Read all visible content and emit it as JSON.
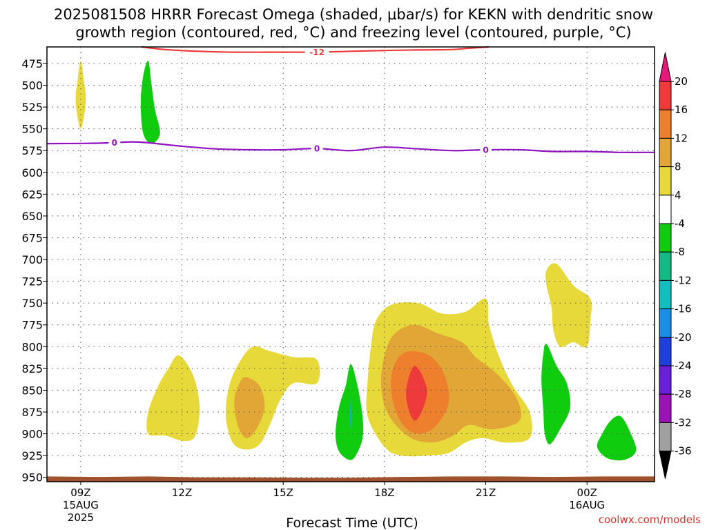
{
  "title_line1": "2025081508 HRRR Forecast Omega (shaded, μbar/s) for KEKN with dendritic snow",
  "title_line2": "growth region (contoured, red, °C) and freezing level (contoured, purple, °C)",
  "credit": "coolwx.com/models",
  "chart_data": {
    "type": "contour",
    "xlabel": "Forecast Time (UTC)",
    "ylabel": "",
    "x_range_hours": [
      8,
      26
    ],
    "y_range_hpa": [
      456,
      955
    ],
    "y_axis": "pressure (hPa), inverted",
    "grid": true,
    "y_ticks": [
      475,
      500,
      525,
      550,
      575,
      600,
      625,
      650,
      675,
      700,
      725,
      750,
      775,
      800,
      825,
      850,
      875,
      900,
      925,
      950
    ],
    "x_ticks": [
      {
        "hour": 9,
        "label": "09Z",
        "sub1": "15AUG",
        "sub2": "2025"
      },
      {
        "hour": 12,
        "label": "12Z",
        "sub1": "",
        "sub2": ""
      },
      {
        "hour": 15,
        "label": "15Z",
        "sub1": "",
        "sub2": ""
      },
      {
        "hour": 18,
        "label": "18Z",
        "sub1": "",
        "sub2": ""
      },
      {
        "hour": 21,
        "label": "21Z",
        "sub1": "",
        "sub2": ""
      },
      {
        "hour": 24,
        "label": "00Z",
        "sub1": "16AUG",
        "sub2": ""
      }
    ],
    "colorbar": {
      "labels": [
        "20",
        "16",
        "12",
        "8",
        "4",
        "-4",
        "-8",
        "-12",
        "-16",
        "-20",
        "-24",
        "-28",
        "-32",
        "-36"
      ],
      "colors": [
        "#ee3a3a",
        "#ee7f2d",
        "#e2a637",
        "#e8d93a",
        "#ffffff",
        "#0fcc0f",
        "#12bb84",
        "#11bfbf",
        "#1a8fe8",
        "#1f3fd9",
        "#6a1fd8",
        "#9a12b8",
        "#a0a0a0"
      ],
      "top_arrow_color": "#e6197a",
      "bottom_arrow_color": "#000000"
    },
    "freezing_level": {
      "label": "0",
      "color": "#9012c0",
      "points": [
        [
          8,
          567
        ],
        [
          9.5,
          566.5
        ],
        [
          10.5,
          565
        ],
        [
          11,
          566
        ],
        [
          12,
          570
        ],
        [
          13,
          573
        ],
        [
          14,
          574
        ],
        [
          15,
          574
        ],
        [
          16,
          572.5
        ],
        [
          17,
          575
        ],
        [
          18,
          571
        ],
        [
          19,
          573
        ],
        [
          20,
          575
        ],
        [
          21,
          574
        ],
        [
          22,
          574
        ],
        [
          23,
          576
        ],
        [
          24,
          576
        ],
        [
          25,
          577
        ],
        [
          26,
          577
        ]
      ],
      "label_hours": [
        10,
        16,
        21
      ]
    },
    "dendritic_isotherm": {
      "label": "-12",
      "color": "#ee3a3a",
      "points": [
        [
          10.8,
          456
        ],
        [
          11.5,
          459
        ],
        [
          12.5,
          461
        ],
        [
          13.5,
          462
        ],
        [
          15,
          462
        ],
        [
          16,
          462
        ],
        [
          17,
          461
        ],
        [
          18,
          460
        ],
        [
          19,
          459.5
        ],
        [
          20,
          459
        ],
        [
          20.5,
          457.5
        ],
        [
          21.1,
          456
        ]
      ],
      "label_hours": [
        16
      ]
    },
    "shaded_regions": [
      {
        "value": "4",
        "color": "#e8d93a",
        "points": [
          [
            9.0,
            472
          ],
          [
            9.1,
            497
          ],
          [
            9.15,
            512
          ],
          [
            9.12,
            530
          ],
          [
            9.0,
            550
          ],
          [
            8.88,
            530
          ],
          [
            8.85,
            512
          ],
          [
            8.9,
            497
          ]
        ]
      },
      {
        "value": "-4",
        "color": "#0fcc0f",
        "points": [
          [
            11.0,
            472
          ],
          [
            11.1,
            500
          ],
          [
            11.2,
            528
          ],
          [
            11.35,
            555
          ],
          [
            11.1,
            567
          ],
          [
            10.85,
            555
          ],
          [
            10.78,
            520
          ],
          [
            10.85,
            490
          ]
        ]
      },
      {
        "value": "4",
        "color": "#e8d93a",
        "points": [
          [
            11.9,
            810
          ],
          [
            12.3,
            830
          ],
          [
            12.5,
            860
          ],
          [
            12.5,
            885
          ],
          [
            12.35,
            905
          ],
          [
            12.0,
            908
          ],
          [
            11.5,
            902
          ],
          [
            11.0,
            900
          ],
          [
            11.0,
            875
          ],
          [
            11.3,
            845
          ],
          [
            11.6,
            825
          ]
        ]
      },
      {
        "value": "4",
        "color": "#e8d93a",
        "points": [
          [
            14.1,
            800
          ],
          [
            14.6,
            805
          ],
          [
            15.3,
            812
          ],
          [
            16.0,
            815
          ],
          [
            16.0,
            842
          ],
          [
            15.3,
            842
          ],
          [
            14.9,
            862
          ],
          [
            14.6,
            890
          ],
          [
            14.3,
            912
          ],
          [
            13.9,
            918
          ],
          [
            13.5,
            910
          ],
          [
            13.3,
            880
          ],
          [
            13.4,
            845
          ],
          [
            13.7,
            818
          ]
        ]
      },
      {
        "value": "8",
        "color": "#e2a637",
        "points": [
          [
            13.9,
            835
          ],
          [
            14.3,
            845
          ],
          [
            14.45,
            870
          ],
          [
            14.2,
            895
          ],
          [
            13.9,
            905
          ],
          [
            13.65,
            890
          ],
          [
            13.55,
            862
          ],
          [
            13.7,
            842
          ]
        ]
      },
      {
        "value": "-4",
        "color": "#0fcc0f",
        "points": [
          [
            17.0,
            820
          ],
          [
            17.2,
            845
          ],
          [
            17.35,
            880
          ],
          [
            17.35,
            905
          ],
          [
            17.15,
            925
          ],
          [
            16.95,
            930
          ],
          [
            16.65,
            920
          ],
          [
            16.55,
            900
          ],
          [
            16.65,
            870
          ],
          [
            16.85,
            845
          ]
        ]
      },
      {
        "value": "-8",
        "color": "#12bb84",
        "points": [
          [
            17.0,
            860
          ],
          [
            17.05,
            880
          ],
          [
            17.0,
            895
          ],
          [
            16.95,
            880
          ]
        ]
      },
      {
        "value": "4",
        "color": "#e8d93a",
        "points": [
          [
            19.0,
            750
          ],
          [
            19.7,
            762
          ],
          [
            20.4,
            760
          ],
          [
            21.0,
            745
          ],
          [
            21.1,
            775
          ],
          [
            21.4,
            812
          ],
          [
            21.8,
            845
          ],
          [
            22.3,
            875
          ],
          [
            22.3,
            905
          ],
          [
            21.6,
            910
          ],
          [
            20.9,
            905
          ],
          [
            20.4,
            910
          ],
          [
            19.9,
            922
          ],
          [
            19.3,
            925
          ],
          [
            18.5,
            925
          ],
          [
            18.0,
            915
          ],
          [
            17.5,
            880
          ],
          [
            17.5,
            840
          ],
          [
            17.6,
            800
          ],
          [
            17.75,
            770
          ],
          [
            18.2,
            752
          ]
        ]
      },
      {
        "value": "8",
        "color": "#e2a637",
        "points": [
          [
            18.9,
            775
          ],
          [
            19.6,
            785
          ],
          [
            20.3,
            795
          ],
          [
            20.7,
            812
          ],
          [
            21.3,
            830
          ],
          [
            21.9,
            858
          ],
          [
            22.0,
            885
          ],
          [
            21.2,
            895
          ],
          [
            20.5,
            890
          ],
          [
            20.0,
            903
          ],
          [
            19.4,
            910
          ],
          [
            18.7,
            903
          ],
          [
            18.1,
            877
          ],
          [
            17.9,
            845
          ],
          [
            18.0,
            810
          ],
          [
            18.3,
            785
          ]
        ]
      },
      {
        "value": "12",
        "color": "#ee7f2d",
        "points": [
          [
            18.8,
            805
          ],
          [
            19.4,
            812
          ],
          [
            19.8,
            835
          ],
          [
            19.9,
            865
          ],
          [
            19.5,
            892
          ],
          [
            19.0,
            900
          ],
          [
            18.55,
            890
          ],
          [
            18.25,
            863
          ],
          [
            18.2,
            835
          ],
          [
            18.4,
            813
          ]
        ]
      },
      {
        "value": "16",
        "color": "#ee3a3a",
        "points": [
          [
            18.9,
            822
          ],
          [
            19.25,
            847
          ],
          [
            19.15,
            870
          ],
          [
            18.9,
            885
          ],
          [
            18.7,
            870
          ],
          [
            18.65,
            847
          ]
        ]
      },
      {
        "value": "4",
        "color": "#e8d93a",
        "points": [
          [
            23.1,
            705
          ],
          [
            23.6,
            730
          ],
          [
            24.1,
            745
          ],
          [
            24.1,
            770
          ],
          [
            24.0,
            800
          ],
          [
            23.6,
            795
          ],
          [
            23.2,
            800
          ],
          [
            23.0,
            780
          ],
          [
            22.95,
            755
          ],
          [
            22.8,
            730
          ],
          [
            22.8,
            712
          ]
        ]
      },
      {
        "value": "-4",
        "color": "#0fcc0f",
        "points": [
          [
            22.8,
            797
          ],
          [
            23.1,
            822
          ],
          [
            23.4,
            842
          ],
          [
            23.5,
            870
          ],
          [
            23.2,
            895
          ],
          [
            22.9,
            912
          ],
          [
            22.75,
            900
          ],
          [
            22.7,
            870
          ],
          [
            22.65,
            838
          ],
          [
            22.7,
            810
          ]
        ]
      },
      {
        "value": "-4",
        "color": "#0fcc0f",
        "points": [
          [
            25.0,
            880
          ],
          [
            25.3,
            900
          ],
          [
            25.45,
            920
          ],
          [
            25.1,
            930
          ],
          [
            24.6,
            928
          ],
          [
            24.3,
            915
          ],
          [
            24.45,
            900
          ],
          [
            24.7,
            885
          ]
        ]
      }
    ],
    "ground": {
      "color": "#a0522d",
      "points": [
        [
          8.0,
          949
        ],
        [
          9.5,
          949.5
        ],
        [
          11.0,
          949
        ],
        [
          12.5,
          950
        ],
        [
          14.0,
          950
        ],
        [
          15.5,
          950.5
        ],
        [
          17.0,
          950.5
        ],
        [
          18.5,
          949.5
        ],
        [
          20.0,
          949
        ],
        [
          21.5,
          949
        ],
        [
          23.0,
          949.5
        ],
        [
          24.5,
          949
        ],
        [
          26.0,
          949
        ]
      ]
    }
  }
}
